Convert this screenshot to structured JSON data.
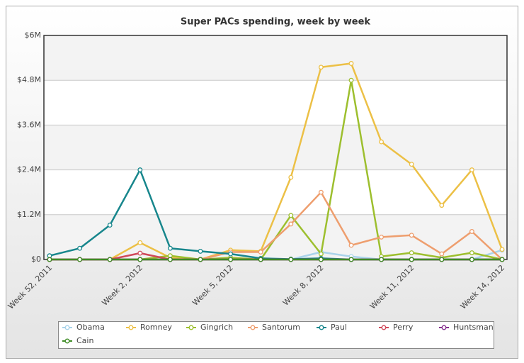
{
  "chart_data": {
    "type": "line",
    "title": "Super PACs spending, week by week",
    "categories": [
      "Week 52, 2011",
      null,
      null,
      "Week 2, 2012",
      null,
      null,
      "Week 5, 2012",
      null,
      null,
      "Week 8, 2012",
      null,
      null,
      "Week 11, 2012",
      null,
      null,
      "Week 14, 2012"
    ],
    "ylim": [
      0,
      6
    ],
    "yticks": [
      {
        "value": 0,
        "label": "$0"
      },
      {
        "value": 1.2,
        "label": "$1.2M"
      },
      {
        "value": 2.4,
        "label": "$2.4M"
      },
      {
        "value": 3.6,
        "label": "$3.6M"
      },
      {
        "value": 4.8,
        "label": "$4.8M"
      },
      {
        "value": 6,
        "label": "$6M"
      }
    ],
    "grid": true,
    "series": [
      {
        "name": "Obama",
        "color": "#a9d3ea",
        "values": [
          0,
          0,
          0,
          0,
          0,
          0,
          0,
          0,
          0,
          0.2,
          0.08,
          0,
          0,
          0,
          0,
          0.25
        ]
      },
      {
        "name": "Romney",
        "color": "#ecc046",
        "values": [
          0,
          0,
          0,
          0.45,
          0.05,
          0,
          0.25,
          0.22,
          2.2,
          5.15,
          5.25,
          3.15,
          2.55,
          1.45,
          2.4,
          0.27
        ]
      },
      {
        "name": "Gingrich",
        "color": "#9dbf2e",
        "values": [
          0,
          0,
          0,
          0,
          0.1,
          0,
          0.05,
          0,
          1.18,
          0.15,
          4.8,
          0.08,
          0.18,
          0.05,
          0.18,
          0
        ]
      },
      {
        "name": "Santorum",
        "color": "#ee9e6e",
        "values": [
          0,
          0,
          0,
          0,
          0,
          0,
          0.2,
          0.2,
          0.95,
          1.8,
          0.38,
          0.6,
          0.65,
          0.15,
          0.75,
          0
        ]
      },
      {
        "name": "Paul",
        "color": "#17868c",
        "values": [
          0.1,
          0.3,
          0.92,
          2.4,
          0.3,
          0.22,
          0.15,
          0.03,
          0.01,
          0.03,
          0,
          0,
          0,
          0,
          0,
          0
        ]
      },
      {
        "name": "Perry",
        "color": "#d0495a",
        "values": [
          0,
          0,
          0,
          0.17,
          0,
          0,
          0,
          0,
          0,
          0,
          0,
          0,
          0,
          0,
          0,
          0
        ]
      },
      {
        "name": "Huntsman",
        "color": "#86318f",
        "values": [
          0,
          0,
          0,
          0,
          0,
          0,
          0,
          0,
          0,
          0,
          0,
          0,
          0,
          0,
          0,
          0
        ]
      },
      {
        "name": "Cain",
        "color": "#3f8c26",
        "values": [
          0,
          0,
          0,
          0,
          0,
          0,
          0,
          0,
          0,
          0,
          0,
          0,
          0,
          0,
          0,
          0
        ]
      }
    ]
  }
}
